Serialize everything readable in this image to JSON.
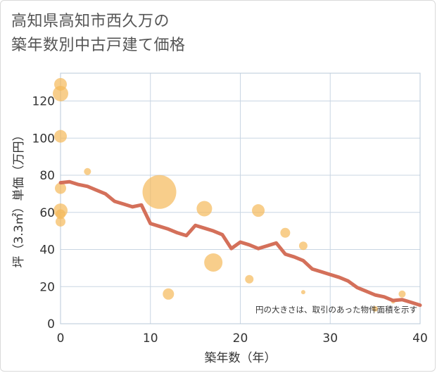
{
  "chart_data": {
    "type": "scatter+line",
    "title_lines": [
      "高知県高知市西久万の",
      "築年数別中古戸建て価格"
    ],
    "xlabel": "築年数（年）",
    "ylabel": "坪（3.3㎡）単価（万円）",
    "xlim": [
      0,
      40
    ],
    "ylim": [
      0,
      135
    ],
    "xticks": [
      0,
      10,
      20,
      30,
      40
    ],
    "yticks": [
      0,
      20,
      40,
      60,
      80,
      100,
      120
    ],
    "grid": true,
    "note": "円の大きさは、取引のあった物件面積を示す",
    "colors": {
      "bubble": "#f5b95a",
      "line": "#d4705a",
      "grid": "#c9d6e3"
    },
    "bubbles": [
      {
        "x": 0,
        "y": 129,
        "size": 9
      },
      {
        "x": 0,
        "y": 124,
        "size": 11
      },
      {
        "x": 0,
        "y": 101,
        "size": 9
      },
      {
        "x": 0,
        "y": 73,
        "size": 8
      },
      {
        "x": 0,
        "y": 61,
        "size": 10
      },
      {
        "x": 0,
        "y": 59,
        "size": 7
      },
      {
        "x": 0,
        "y": 55,
        "size": 7
      },
      {
        "x": 3,
        "y": 82,
        "size": 5
      },
      {
        "x": 11,
        "y": 71,
        "size": 24
      },
      {
        "x": 12,
        "y": 16,
        "size": 8
      },
      {
        "x": 16,
        "y": 62,
        "size": 11
      },
      {
        "x": 17,
        "y": 33,
        "size": 13
      },
      {
        "x": 21,
        "y": 24,
        "size": 6
      },
      {
        "x": 22,
        "y": 61,
        "size": 9
      },
      {
        "x": 25,
        "y": 49,
        "size": 7
      },
      {
        "x": 27,
        "y": 42,
        "size": 6
      },
      {
        "x": 27,
        "y": 17,
        "size": 3
      },
      {
        "x": 35,
        "y": 8,
        "size": 4
      },
      {
        "x": 37,
        "y": 12,
        "size": 3
      },
      {
        "x": 38,
        "y": 16,
        "size": 5
      }
    ],
    "line": {
      "x": [
        0,
        1,
        2,
        3,
        4,
        5,
        6,
        7,
        8,
        9,
        10,
        11,
        12,
        13,
        14,
        15,
        16,
        17,
        18,
        19,
        20,
        21,
        22,
        23,
        24,
        25,
        26,
        27,
        28,
        29,
        30,
        31,
        32,
        33,
        34,
        35,
        36,
        37,
        38,
        39,
        40
      ],
      "y": [
        76,
        76.5,
        75,
        74,
        72,
        70,
        66,
        64.5,
        63,
        64,
        54,
        52.5,
        51,
        49,
        47.5,
        53,
        51.5,
        50,
        48,
        40.5,
        44,
        42.5,
        40.5,
        42,
        43.5,
        37.5,
        36,
        34,
        29.5,
        28,
        26.5,
        25,
        23,
        19.5,
        17.5,
        15.5,
        14.5,
        12.5,
        13,
        11.5,
        10
      ]
    }
  }
}
